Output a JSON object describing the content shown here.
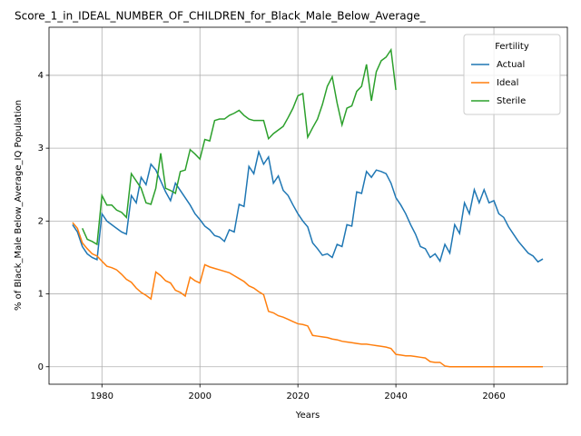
{
  "chart_data": {
    "type": "line",
    "title": "Score_1_in_IDEAL_NUMBER_OF_CHILDREN_for_Black_Male_Below_Average_",
    "xlabel": "Years",
    "ylabel": "% of Black_Male Below_Average_IQ Population",
    "legend_title": "Fertility",
    "legend": "upper right",
    "grid": true,
    "x": [
      1974,
      1975,
      1976,
      1977,
      1978,
      1979,
      1980,
      1981,
      1982,
      1983,
      1984,
      1985,
      1986,
      1987,
      1988,
      1989,
      1990,
      1991,
      1992,
      1993,
      1994,
      1995,
      1996,
      1997,
      1998,
      1999,
      2000,
      2001,
      2002,
      2003,
      2004,
      2005,
      2006,
      2007,
      2008,
      2009,
      2010,
      2011,
      2012,
      2013,
      2014,
      2015,
      2016,
      2017,
      2018,
      2019,
      2020,
      2021,
      2022,
      2023,
      2024,
      2025,
      2026,
      2027,
      2028,
      2029,
      2030,
      2031,
      2032,
      2033,
      2034,
      2035,
      2036,
      2037,
      2038,
      2039,
      2040,
      2041,
      2042,
      2043,
      2044,
      2045,
      2046,
      2047,
      2048,
      2049,
      2050,
      2051,
      2052,
      2053,
      2054,
      2055,
      2056,
      2057,
      2058,
      2059,
      2060,
      2061,
      2062,
      2063,
      2064,
      2065,
      2066,
      2067,
      2068,
      2069,
      2070
    ],
    "xlim": [
      1969.2,
      2075
    ],
    "xticks": [
      1980,
      2000,
      2020,
      2040,
      2060
    ],
    "ylim": [
      -0.24,
      4.66
    ],
    "yticks": [
      0,
      1,
      2,
      3,
      4
    ],
    "series": [
      {
        "name": "Actual",
        "color": "#1f77b4",
        "values": [
          1.95,
          1.85,
          1.65,
          1.55,
          1.5,
          1.47,
          2.1,
          2.0,
          1.95,
          1.9,
          1.85,
          1.82,
          2.35,
          2.25,
          2.6,
          2.5,
          2.78,
          2.7,
          2.55,
          2.4,
          2.28,
          2.52,
          2.42,
          2.32,
          2.22,
          2.1,
          2.02,
          1.93,
          1.88,
          1.8,
          1.78,
          1.72,
          1.88,
          1.85,
          2.23,
          2.2,
          2.75,
          2.65,
          2.95,
          2.78,
          2.88,
          2.52,
          2.62,
          2.42,
          2.35,
          2.22,
          2.1,
          2.0,
          1.92,
          1.7,
          1.62,
          1.53,
          1.55,
          1.5,
          1.68,
          1.65,
          1.95,
          1.93,
          2.4,
          2.38,
          2.68,
          2.6,
          2.7,
          2.68,
          2.65,
          2.52,
          2.32,
          2.22,
          2.1,
          1.95,
          1.82,
          1.65,
          1.62,
          1.5,
          1.55,
          1.45,
          1.68,
          1.56,
          1.95,
          1.83,
          2.25,
          2.1,
          2.43,
          2.25,
          2.43,
          2.25,
          2.28,
          2.1,
          2.05,
          1.92,
          1.82,
          1.72,
          1.64,
          1.56,
          1.52,
          1.44,
          1.48
        ]
      },
      {
        "name": "Ideal",
        "color": "#ff7f0e",
        "values": [
          1.98,
          1.9,
          1.7,
          1.62,
          1.55,
          1.52,
          1.45,
          1.38,
          1.36,
          1.33,
          1.27,
          1.2,
          1.16,
          1.08,
          1.02,
          0.98,
          0.93,
          1.3,
          1.25,
          1.18,
          1.15,
          1.05,
          1.02,
          0.97,
          1.23,
          1.18,
          1.15,
          1.4,
          1.37,
          1.35,
          1.33,
          1.31,
          1.29,
          1.25,
          1.21,
          1.17,
          1.11,
          1.08,
          1.03,
          0.99,
          0.76,
          0.74,
          0.7,
          0.68,
          0.65,
          0.62,
          0.59,
          0.58,
          0.56,
          0.43,
          0.42,
          0.41,
          0.4,
          0.38,
          0.37,
          0.35,
          0.34,
          0.33,
          0.32,
          0.31,
          0.31,
          0.3,
          0.29,
          0.28,
          0.27,
          0.25,
          0.17,
          0.16,
          0.15,
          0.15,
          0.14,
          0.13,
          0.12,
          0.07,
          0.06,
          0.06,
          0.01,
          0,
          0,
          0,
          0,
          0,
          0,
          0,
          0,
          0,
          0,
          0,
          0,
          0,
          0,
          0,
          0,
          0,
          0,
          0,
          0
        ]
      },
      {
        "name": "Sterile",
        "color": "#2ca02c",
        "values": [
          null,
          null,
          1.9,
          1.75,
          1.72,
          1.68,
          2.35,
          2.22,
          2.22,
          2.15,
          2.12,
          2.05,
          2.65,
          2.55,
          2.45,
          2.25,
          2.23,
          2.45,
          2.93,
          2.45,
          2.42,
          2.38,
          2.68,
          2.7,
          2.98,
          2.92,
          2.85,
          3.12,
          3.1,
          3.38,
          3.4,
          3.4,
          3.45,
          3.48,
          3.52,
          3.45,
          3.4,
          3.38,
          3.38,
          3.38,
          3.13,
          3.2,
          3.25,
          3.3,
          3.42,
          3.55,
          3.72,
          3.75,
          3.15,
          3.28,
          3.4,
          3.6,
          3.85,
          3.98,
          3.62,
          3.32,
          3.55,
          3.58,
          3.78,
          3.85,
          4.15,
          3.65,
          4.05,
          4.2,
          4.25,
          4.35,
          3.8,
          null,
          null,
          null,
          null,
          null,
          null,
          null,
          null,
          null,
          null,
          null,
          null,
          null,
          null,
          null,
          null,
          null,
          null,
          null,
          null,
          null,
          null,
          null,
          null,
          null,
          null,
          null,
          null,
          null,
          null
        ]
      }
    ]
  }
}
